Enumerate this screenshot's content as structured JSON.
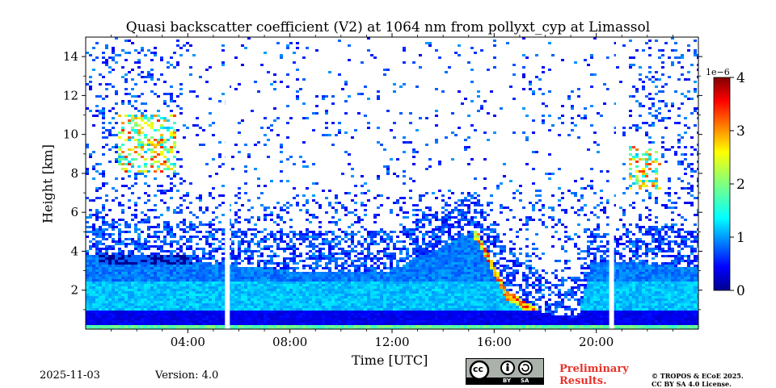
{
  "chart_data": {
    "type": "heatmap",
    "title": "Quasi backscatter coefficient (V2) at 1064 nm from pollyxt_cyp at Limassol",
    "xlabel": "Time [UTC]",
    "ylabel": "Height [km]",
    "xlim": [
      0,
      24
    ],
    "ylim": [
      0,
      15
    ],
    "x_ticks": [
      4,
      8,
      12,
      16,
      20
    ],
    "x_tick_labels": [
      "04:00",
      "08:00",
      "12:00",
      "16:00",
      "20:00"
    ],
    "y_ticks": [
      2,
      4,
      6,
      8,
      10,
      12,
      14
    ],
    "y_tick_labels": [
      "2",
      "4",
      "6",
      "8",
      "10",
      "12",
      "14"
    ],
    "colorbar": {
      "label_exponent": "1e−6",
      "range": [
        0,
        4
      ],
      "ticks": [
        0,
        1,
        2,
        3,
        4
      ],
      "tick_labels": [
        "0",
        "1",
        "2",
        "3",
        "4"
      ],
      "colormap": "jet"
    },
    "data_gaps_utc": [
      5.55,
      20.6
    ],
    "features": [
      {
        "name": "boundary layer / aerosol layer top",
        "times": [
          0,
          4,
          8,
          12,
          14.5,
          15.3,
          16.5,
          18,
          19.3,
          19.8,
          21,
          22,
          24
        ],
        "top_km": [
          3.8,
          3.5,
          3.0,
          3.0,
          4.6,
          5.1,
          2.0,
          0.8,
          0.6,
          3.4,
          3.5,
          3.3,
          3.2
        ]
      },
      {
        "name": "elevated layer",
        "time_range": [
          0.5,
          4.2
        ],
        "height_km": 3.6
      },
      {
        "name": "cirrus cloud",
        "time_range": [
          1.3,
          3.6
        ],
        "height_range_km": [
          8.0,
          11.0
        ]
      },
      {
        "name": "cirrus cloud",
        "time_range": [
          21.3,
          22.5
        ],
        "height_range_km": [
          7.2,
          9.4
        ]
      }
    ]
  },
  "footer": {
    "date": "2025-11-03",
    "version": "Version: 4.0",
    "license_badge": {
      "cc": "cc",
      "by": "BY",
      "sa": "SA"
    },
    "preliminary": [
      "Preliminary",
      "Results."
    ],
    "copyright": [
      "© TROPOS & ECoE 2025.",
      "CC BY SA 4.0 License."
    ]
  }
}
